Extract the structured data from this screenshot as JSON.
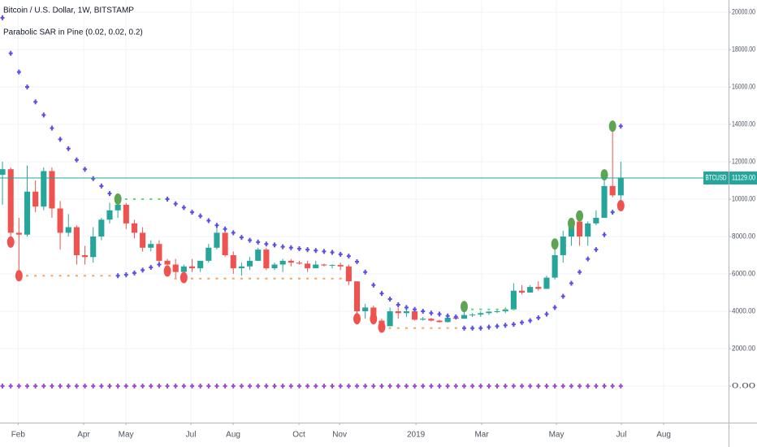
{
  "chart_data": {
    "type": "candlestick",
    "title": "Bitcoin / U.S. Dollar, 1W, BITSTAMP",
    "subtitle": "Parabolic SAR in Pine (0.02, 0.02, 0.2)",
    "x": [
      0,
      1,
      2,
      3,
      4,
      5,
      6,
      7,
      8,
      9,
      10,
      11,
      12,
      13,
      14,
      15,
      16,
      17,
      18,
      19,
      20,
      21,
      22,
      23,
      24,
      25,
      26,
      27,
      28,
      29,
      30,
      31,
      32,
      33,
      34,
      35,
      36,
      37,
      38,
      39,
      40,
      41,
      42,
      43,
      44,
      45,
      46,
      47,
      48,
      49,
      50,
      51,
      52,
      53,
      54,
      55,
      56,
      57,
      58,
      59,
      60,
      61,
      62,
      63,
      64,
      65,
      66,
      67,
      68,
      69,
      70,
      71,
      72,
      73,
      74,
      75
    ],
    "open": [
      11300,
      11600,
      8200,
      8100,
      10400,
      9600,
      11500,
      9500,
      8200,
      8500,
      7000,
      6900,
      8000,
      8900,
      9400,
      9700,
      8700,
      8200,
      7400,
      7600,
      6700,
      6500,
      6100,
      6400,
      6300,
      6700,
      7400,
      8200,
      7000,
      6300,
      6400,
      6700,
      7300,
      6300,
      6500,
      6700,
      6600,
      6550,
      6300,
      6500,
      6450,
      6480,
      6400,
      5600,
      4000,
      4200,
      3500,
      3200,
      4000,
      3900,
      4000,
      3550,
      3600,
      3500,
      3420,
      3650,
      3600,
      3800,
      3820,
      3900,
      3980,
      4000,
      4100,
      5100,
      5000,
      5300,
      5200,
      5800,
      7000,
      8000,
      8800,
      8000,
      8700,
      9000,
      10700,
      10200
    ],
    "high": [
      12000,
      11700,
      9000,
      11800,
      11000,
      11700,
      11700,
      9900,
      9200,
      8600,
      7500,
      8500,
      9000,
      9800,
      9900,
      9800,
      8900,
      8500,
      7800,
      7800,
      6800,
      6800,
      6500,
      6800,
      6700,
      7600,
      8500,
      8300,
      7200,
      6600,
      6900,
      7400,
      7400,
      6600,
      6800,
      6800,
      6700,
      6700,
      6700,
      6550,
      6500,
      6600,
      6500,
      5600,
      4400,
      4300,
      3600,
      4200,
      4200,
      4100,
      4100,
      3700,
      3650,
      3550,
      3700,
      3700,
      4200,
      3900,
      4000,
      4000,
      4100,
      4200,
      5500,
      5400,
      5400,
      5600,
      5900,
      7500,
      8300,
      8900,
      9000,
      8800,
      9400,
      11300,
      13900,
      12000
    ],
    "low": [
      9700,
      7700,
      6000,
      8000,
      9300,
      9400,
      9000,
      7300,
      8000,
      6500,
      6500,
      6600,
      7800,
      8700,
      9000,
      8400,
      7900,
      7200,
      7200,
      6600,
      6100,
      5800,
      5800,
      6100,
      6100,
      6600,
      7300,
      6900,
      6000,
      5900,
      6200,
      6700,
      6200,
      6200,
      6100,
      6400,
      6500,
      6100,
      6300,
      6400,
      6300,
      6200,
      5400,
      3800,
      3600,
      3400,
      3200,
      3200,
      3600,
      3700,
      3500,
      3500,
      3450,
      3400,
      3400,
      3550,
      3600,
      3700,
      3700,
      3800,
      3900,
      3900,
      4100,
      4900,
      5000,
      5100,
      5200,
      5700,
      6600,
      7500,
      7500,
      7500,
      8600,
      9000,
      10100,
      9700
    ],
    "close": [
      11600,
      8200,
      8100,
      10400,
      9600,
      11500,
      9500,
      8200,
      8500,
      7000,
      6900,
      8000,
      8900,
      9400,
      9700,
      8700,
      8200,
      7400,
      7600,
      6700,
      6500,
      6100,
      6400,
      6300,
      6700,
      7400,
      8200,
      7000,
      6300,
      6400,
      6700,
      7300,
      6300,
      6500,
      6700,
      6600,
      6550,
      6300,
      6500,
      6450,
      6480,
      6400,
      5600,
      4000,
      4200,
      3500,
      3200,
      4000,
      3900,
      4000,
      3550,
      3600,
      3500,
      3420,
      3650,
      3600,
      3800,
      3820,
      3900,
      3980,
      4000,
      4100,
      5100,
      5000,
      5300,
      5200,
      5800,
      7000,
      8000,
      8800,
      8000,
      8700,
      9000,
      10700,
      10200,
      11129
    ],
    "up_color": "#26a69a",
    "down_color": "#ef5350",
    "overlays": [
      {
        "marker": "cross",
        "color": "#5a4fe3",
        "values": [
          19700,
          17800,
          16800,
          16000,
          15200,
          14500,
          13800,
          13200,
          12700,
          12100,
          11600,
          11100,
          10700,
          10300,
          5900,
          5950,
          6050,
          6200,
          6350,
          6500,
          10000,
          9750,
          9550,
          9300,
          9100,
          8850,
          8600,
          8400,
          8200,
          7950,
          7800,
          7700,
          7600,
          7550,
          7450,
          7400,
          7350,
          7300,
          7250,
          7200,
          7150,
          7050,
          6950,
          6650,
          6100,
          5400,
          4950,
          4650,
          4350,
          4200,
          4100,
          4000,
          3900,
          3850,
          3750,
          3700,
          3100,
          3100,
          3100,
          3150,
          3200,
          3250,
          3300,
          3400,
          3500,
          3650,
          3850,
          4200,
          4800,
          5500,
          6100,
          6800,
          7300,
          8100,
          9300,
          13900
        ]
      },
      {
        "marker": "cross",
        "color": "#a34bd0",
        "values": [
          0,
          0,
          0,
          0,
          0,
          0,
          0,
          0,
          0,
          0,
          0,
          0,
          0,
          0,
          0,
          0,
          0,
          0,
          0,
          0,
          0,
          0,
          0,
          0,
          0,
          0,
          0,
          0,
          0,
          0,
          0,
          0,
          0,
          0,
          0,
          0,
          0,
          0,
          0,
          0,
          0,
          0,
          0,
          0,
          0,
          0,
          0,
          0,
          0,
          0,
          0,
          0,
          0,
          0,
          0,
          0,
          0,
          0,
          0,
          0,
          0,
          0,
          0,
          0,
          0,
          0,
          0,
          0,
          0,
          0,
          0,
          0,
          0,
          0,
          0,
          0
        ]
      },
      {
        "marker": "dash",
        "color": "#f7a35c",
        "values": [
          null,
          null,
          5900,
          5900,
          5900,
          5900,
          5900,
          5900,
          5900,
          5900,
          5900,
          5900,
          5900,
          5900,
          null,
          null,
          null,
          null,
          null,
          null,
          null,
          5750,
          5750,
          5750,
          5750,
          5750,
          5750,
          5750,
          5750,
          5750,
          5750,
          5750,
          5750,
          5750,
          5750,
          5750,
          5750,
          5750,
          5750,
          5750,
          5750,
          5750,
          null,
          null,
          null,
          null,
          3100,
          3100,
          3100,
          3100,
          3100,
          3100,
          3100,
          3100,
          3100,
          3100,
          null,
          null,
          null,
          null,
          null,
          null,
          null,
          null,
          null,
          null,
          null,
          null,
          null,
          null,
          null,
          null,
          null,
          null,
          null,
          null
        ]
      },
      {
        "marker": "dash",
        "color": "#66d17a",
        "values": [
          null,
          null,
          null,
          null,
          null,
          null,
          null,
          null,
          null,
          null,
          null,
          null,
          null,
          null,
          10000,
          10000,
          10000,
          10000,
          10000,
          10000,
          null,
          null,
          null,
          null,
          null,
          null,
          null,
          null,
          null,
          null,
          null,
          null,
          null,
          null,
          null,
          null,
          null,
          null,
          null,
          null,
          null,
          null,
          null,
          null,
          null,
          null,
          null,
          null,
          null,
          null,
          null,
          null,
          null,
          null,
          null,
          null,
          4100,
          4100,
          4100,
          4100,
          4100,
          4100,
          4100,
          null,
          null,
          null,
          null,
          null,
          null,
          null,
          null,
          null,
          null,
          null,
          null,
          null
        ]
      },
      {
        "marker": "circle",
        "color": "#ef5350",
        "values": [
          null,
          7700,
          5900,
          null,
          null,
          null,
          null,
          null,
          null,
          null,
          null,
          null,
          null,
          null,
          null,
          null,
          null,
          null,
          null,
          null,
          6150,
          null,
          5800,
          null,
          null,
          null,
          null,
          null,
          null,
          null,
          null,
          null,
          null,
          null,
          null,
          null,
          null,
          null,
          null,
          null,
          null,
          null,
          null,
          3600,
          null,
          3600,
          3150,
          null,
          null,
          null,
          null,
          null,
          null,
          null,
          null,
          null,
          null,
          null,
          null,
          null,
          null,
          null,
          null,
          null,
          null,
          null,
          null,
          null,
          null,
          null,
          null,
          null,
          null,
          null,
          null,
          9650
        ]
      },
      {
        "marker": "circle",
        "color": "#5ea552",
        "values": [
          null,
          null,
          null,
          null,
          null,
          null,
          null,
          null,
          null,
          null,
          null,
          null,
          null,
          null,
          10000,
          null,
          null,
          null,
          null,
          null,
          null,
          null,
          null,
          null,
          null,
          null,
          null,
          null,
          null,
          null,
          null,
          null,
          null,
          null,
          null,
          null,
          null,
          null,
          null,
          null,
          null,
          null,
          null,
          null,
          null,
          null,
          null,
          null,
          null,
          null,
          null,
          null,
          null,
          null,
          null,
          null,
          4250,
          null,
          null,
          null,
          null,
          null,
          null,
          null,
          null,
          null,
          null,
          7600,
          null,
          8700,
          9100,
          null,
          null,
          11300,
          13900,
          null
        ]
      }
    ],
    "last_price": {
      "name": "BTCUSD",
      "value": 11129,
      "value_label": "11129.00",
      "color": "#26a69a"
    },
    "xlim": [
      -0.3,
      88.07
    ],
    "xticks": [
      {
        "value": 1.9,
        "label": "Feb"
      },
      {
        "value": 9.85,
        "label": "Apr"
      },
      {
        "value": 14.98,
        "label": "May"
      },
      {
        "value": 22.86,
        "label": "Jul"
      },
      {
        "value": 27.98,
        "label": "Aug"
      },
      {
        "value": 35.96,
        "label": "Oct"
      },
      {
        "value": 40.89,
        "label": "Nov"
      },
      {
        "value": 50.15,
        "label": "2019"
      },
      {
        "value": 58.13,
        "label": "Mar"
      },
      {
        "value": 67.19,
        "label": "May"
      },
      {
        "value": 75.07,
        "label": "Jul"
      },
      {
        "value": 80.2,
        "label": "Aug"
      }
    ],
    "ylim": [
      -1957,
      20652
    ],
    "yticks": [
      {
        "value": 0,
        "label": "0.00"
      },
      {
        "value": 2000,
        "label": "2000.00"
      },
      {
        "value": 4000,
        "label": "4000.00"
      },
      {
        "value": 6000,
        "label": "6000.00"
      },
      {
        "value": 8000,
        "label": "8000.00"
      },
      {
        "value": 10000,
        "label": "10000.00"
      },
      {
        "value": 12000,
        "label": "12000.00"
      },
      {
        "value": 14000,
        "label": "14000.00"
      },
      {
        "value": 16000,
        "label": "16000.00"
      },
      {
        "value": 18000,
        "label": "18000.00"
      },
      {
        "value": 20000,
        "label": "20000.00"
      }
    ],
    "grid": true
  }
}
